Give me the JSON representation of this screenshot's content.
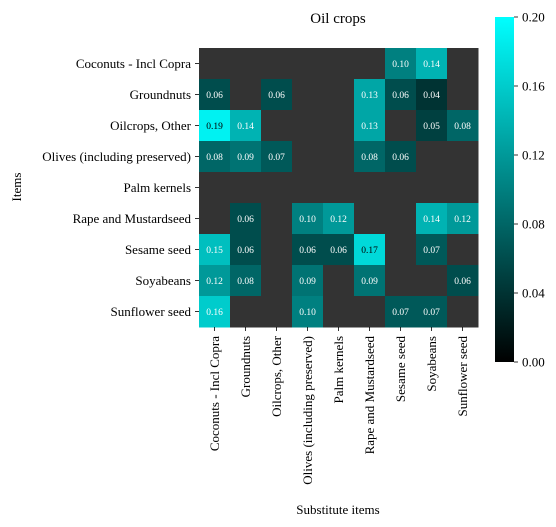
{
  "chart_data": {
    "type": "heatmap",
    "title": "Oil crops",
    "xlabel": "Substitute items",
    "ylabel": "Items",
    "rows": [
      "Coconuts - Incl Copra",
      "Groundnuts",
      "Oilcrops, Other",
      "Olives (including preserved)",
      "Palm kernels",
      "Rape and Mustardseed",
      "Sesame seed",
      "Soyabeans",
      "Sunflower seed"
    ],
    "columns": [
      "Coconuts - Incl Copra",
      "Groundnuts",
      "Oilcrops, Other",
      "Olives (including preserved)",
      "Palm kernels",
      "Rape and Mustardseed",
      "Sesame seed",
      "Soyabeans",
      "Sunflower seed"
    ],
    "values": [
      [
        null,
        null,
        null,
        null,
        null,
        null,
        0.1,
        0.14,
        null
      ],
      [
        0.06,
        null,
        0.06,
        null,
        null,
        0.13,
        0.06,
        0.04,
        null
      ],
      [
        0.19,
        0.14,
        null,
        null,
        null,
        0.13,
        null,
        0.05,
        0.08
      ],
      [
        0.08,
        0.09,
        0.07,
        null,
        null,
        0.08,
        0.06,
        null,
        null
      ],
      [
        null,
        null,
        null,
        null,
        null,
        null,
        null,
        null,
        null
      ],
      [
        null,
        0.06,
        null,
        0.1,
        0.12,
        null,
        null,
        0.14,
        0.12
      ],
      [
        0.15,
        0.06,
        null,
        0.06,
        0.06,
        0.17,
        null,
        0.07,
        null
      ],
      [
        0.12,
        0.08,
        null,
        0.09,
        null,
        0.09,
        null,
        null,
        0.06
      ],
      [
        0.16,
        null,
        null,
        0.1,
        null,
        null,
        0.07,
        0.07,
        null
      ]
    ],
    "value_labels": [
      [
        "",
        "",
        "",
        "",
        "",
        "",
        "0.10",
        "0.14",
        ""
      ],
      [
        "0.06",
        "",
        "0.06",
        "",
        "",
        "0.13",
        "0.06",
        "0.04",
        ""
      ],
      [
        "0.19",
        "0.14",
        "",
        "",
        "",
        "0.13",
        "",
        "0.05",
        "0.08"
      ],
      [
        "0.08",
        "0.09",
        "0.07",
        "",
        "",
        "0.08",
        "0.06",
        "",
        ""
      ],
      [
        "",
        "",
        "",
        "",
        "",
        "",
        "",
        "",
        ""
      ],
      [
        "",
        "0.06",
        "",
        "0.10",
        "0.12",
        "",
        "",
        "0.14",
        "0.12"
      ],
      [
        "0.15",
        "0.06",
        "",
        "0.06",
        "0.06",
        "0.17",
        "",
        "0.07",
        ""
      ],
      [
        "0.12",
        "0.08",
        "",
        "0.09",
        "",
        "0.09",
        "",
        "",
        "0.06"
      ],
      [
        "0.16",
        "",
        "",
        "0.10",
        "",
        "",
        "0.07",
        "0.07",
        ""
      ]
    ],
    "missing_color": "#333333",
    "colormap": [
      "#000000",
      "#00ffff"
    ],
    "vmin": 0.0,
    "vmax": 0.2,
    "colorbar_ticks": [
      0.0,
      0.04,
      0.08,
      0.12,
      0.16,
      0.2
    ],
    "colorbar_tick_labels": [
      "0.00",
      "0.04",
      "0.08",
      "0.12",
      "0.16",
      "0.20"
    ]
  }
}
